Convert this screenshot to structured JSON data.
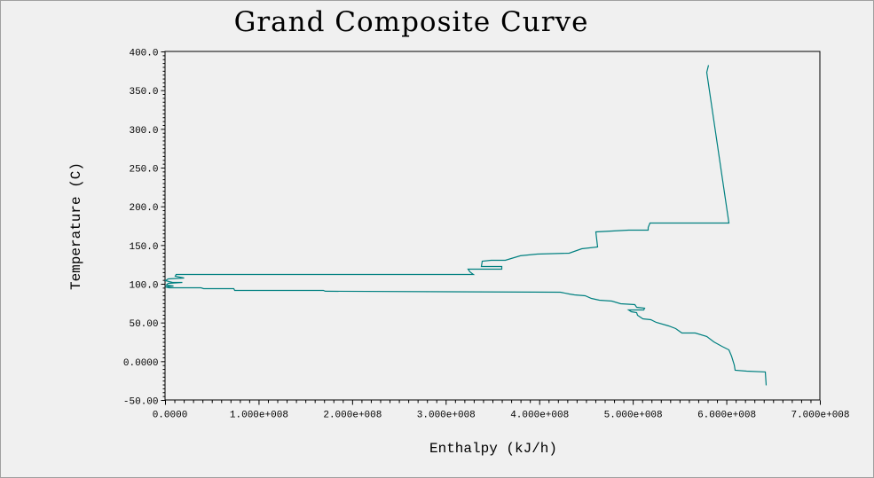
{
  "chart_data": {
    "type": "line",
    "title": "Grand Composite Curve",
    "xlabel": "Enthalpy (kJ/h)",
    "ylabel": "Temperature (C)",
    "xlim": [
      0,
      700000000
    ],
    "ylim": [
      -50,
      400
    ],
    "grid": false,
    "x_ticks": [
      0,
      100000000,
      200000000,
      300000000,
      400000000,
      500000000,
      600000000,
      700000000
    ],
    "x_tick_labels": [
      "0.0000",
      "1.000e+008",
      "2.000e+008",
      "3.000e+008",
      "4.000e+008",
      "5.000e+008",
      "6.000e+008",
      "7.000e+008"
    ],
    "y_ticks": [
      400,
      350,
      300,
      250,
      200,
      150,
      100,
      50,
      0,
      -50
    ],
    "y_tick_labels": [
      "400.0",
      "350.0",
      "300.0",
      "250.0",
      "200.0",
      "150.0",
      "100.0",
      "50.00",
      "0.0000",
      "-50.00"
    ],
    "line_color": "#008080",
    "series": [
      {
        "name": "Grand Composite Curve",
        "x_unit_scale": 100000000,
        "points": [
          [
            5.805,
            382.8
          ],
          [
            5.786,
            373.6
          ],
          [
            6.023,
            179.0
          ],
          [
            5.179,
            179.0
          ],
          [
            5.16,
            173.3
          ],
          [
            5.16,
            169.9
          ],
          [
            4.951,
            169.9
          ],
          [
            4.6,
            167.6
          ],
          [
            4.619,
            148.1
          ],
          [
            4.449,
            145.8
          ],
          [
            4.316,
            140.1
          ],
          [
            3.974,
            138.9
          ],
          [
            3.794,
            136.7
          ],
          [
            3.633,
            130.9
          ],
          [
            3.481,
            130.9
          ],
          [
            3.386,
            129.8
          ],
          [
            3.377,
            122.9
          ],
          [
            3.595,
            122.9
          ],
          [
            3.595,
            119.5
          ],
          [
            3.234,
            119.5
          ],
          [
            3.253,
            116.0
          ],
          [
            3.291,
            112.6
          ],
          [
            0.114,
            112.6
          ],
          [
            0.104,
            110.3
          ],
          [
            0.199,
            108.0
          ],
          [
            0.028,
            106.9
          ],
          [
            0.0,
            104.6
          ],
          [
            0.076,
            102.3
          ],
          [
            0.18,
            102.3
          ],
          [
            0.028,
            101.2
          ],
          [
            0.009,
            98.9
          ],
          [
            0.085,
            97.7
          ],
          [
            0.0,
            96.6
          ],
          [
            0.038,
            95.4
          ],
          [
            0.379,
            95.4
          ],
          [
            0.408,
            94.3
          ],
          [
            0.73,
            94.3
          ],
          [
            0.74,
            92.0
          ],
          [
            1.688,
            92.0
          ],
          [
            1.707,
            90.9
          ],
          [
            4.221,
            89.7
          ],
          [
            4.316,
            87.4
          ],
          [
            4.373,
            86.3
          ],
          [
            4.486,
            85.1
          ],
          [
            4.553,
            81.7
          ],
          [
            4.638,
            79.4
          ],
          [
            4.771,
            78.3
          ],
          [
            4.866,
            74.8
          ],
          [
            5.018,
            73.7
          ],
          [
            5.037,
            70.2
          ],
          [
            5.122,
            69.1
          ],
          [
            5.112,
            66.8
          ],
          [
            4.951,
            66.8
          ],
          [
            4.98,
            64.5
          ],
          [
            5.037,
            63.4
          ],
          [
            5.046,
            59.9
          ],
          [
            5.103,
            55.4
          ],
          [
            5.188,
            54.2
          ],
          [
            5.245,
            50.8
          ],
          [
            5.378,
            46.2
          ],
          [
            5.454,
            42.8
          ],
          [
            5.52,
            37.0
          ],
          [
            5.663,
            37.0
          ],
          [
            5.786,
            32.5
          ],
          [
            5.862,
            25.6
          ],
          [
            5.947,
            19.9
          ],
          [
            6.023,
            15.3
          ],
          [
            6.051,
            7.3
          ],
          [
            6.08,
            -4.2
          ],
          [
            6.089,
            -11.1
          ],
          [
            6.213,
            -12.2
          ],
          [
            6.412,
            -13.3
          ],
          [
            6.421,
            -30.5
          ]
        ]
      }
    ]
  }
}
